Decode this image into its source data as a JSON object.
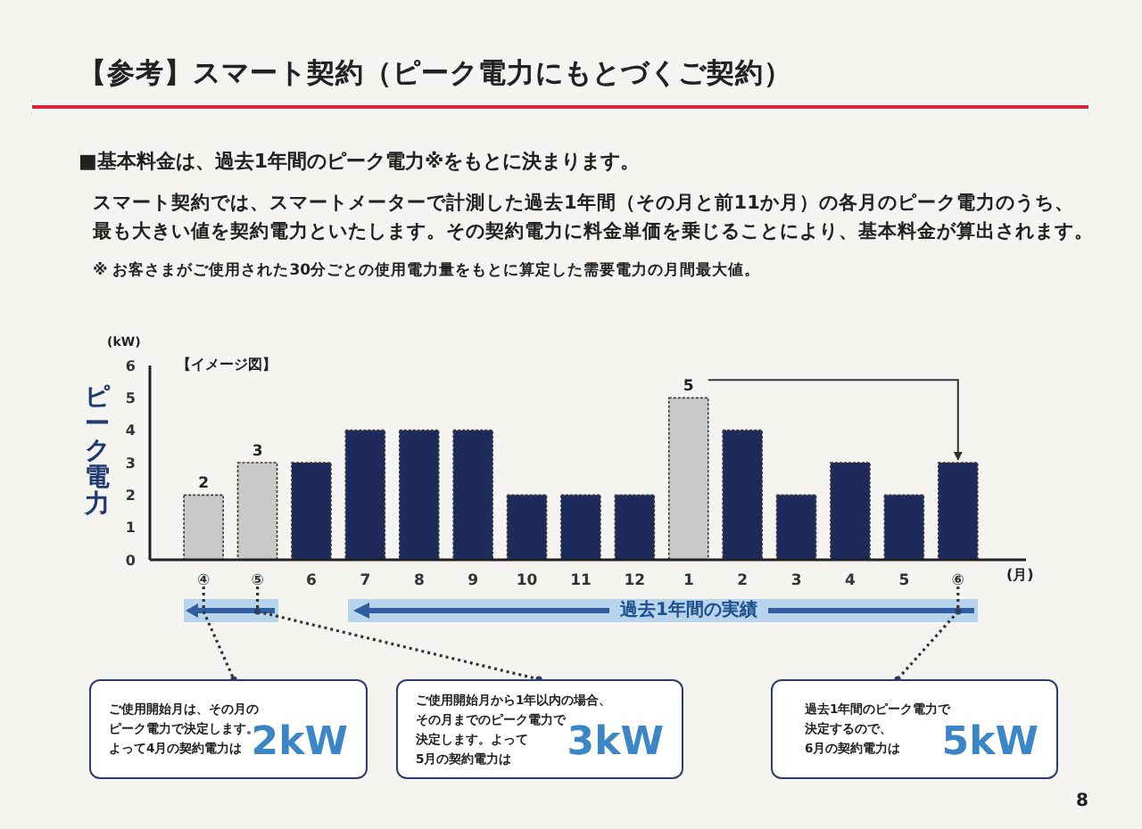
{
  "chart_data": {
    "type": "bar",
    "title": "【参考】スマート契約（ピーク電力にもとづくご契約）",
    "subtitle": "■基本料金は、過去1年間のピーク電力※をもとに決まります。",
    "xlabel": "(月)",
    "ylabel": "ピーク電力",
    "categories": [
      "④",
      "⑤",
      "6",
      "7",
      "8",
      "9",
      "10",
      "11",
      "12",
      "1",
      "2",
      "3",
      "4",
      "5",
      "⑥"
    ],
    "values": [
      2,
      3,
      3,
      4,
      4,
      4,
      2,
      2,
      2,
      5,
      4,
      2,
      3,
      2,
      3
    ],
    "colors": [
      "#c8c8c8",
      "#c8c8c8",
      "#1f2a5c",
      "#1f2a5c",
      "#1f2a5c",
      "#1f2a5c",
      "#1f2a5c",
      "#1f2a5c",
      "#1f2a5c",
      "#c8c8c8",
      "#1f2a5c",
      "#1f2a5c",
      "#1f2a5c",
      "#1f2a5c",
      "#1f2a5c"
    ],
    "value_labels": [
      "2",
      "3",
      null,
      null,
      null,
      null,
      null,
      null,
      null,
      "5",
      null,
      null,
      null,
      null,
      null
    ],
    "ylim": [
      0,
      6
    ],
    "yticks": [
      0,
      1,
      2,
      3,
      4,
      5,
      6
    ],
    "annotations": [
      "スマート契約では、スマートメーターで計測した過去1年間（その月と前11か月）の各月のピーク電力のうち、",
      "最も大きい値を契約電力といたします。その契約電力に料金単価を乗じることにより、基本料金が算出されます。",
      "※ お客さまがご使用された30分ごとの使用電力量をもとに算定した需要電力の月間最大値。",
      "【イメージ図】",
      "(kW)",
      "過去1年間の実績",
      "ご使用開始月は、その月の",
      "ピーク電力で決定します。",
      "よって4月の契約電力は",
      "2kW",
      "ご使用開始月から1年以内の場合、",
      "その月までのピーク電力で",
      "決定します。よって",
      "5月の契約電力は",
      "3kW",
      "過去1年間のピーク電力で",
      "決定するので、",
      "6月の契約電力は",
      "5kW",
      "8"
    ]
  }
}
